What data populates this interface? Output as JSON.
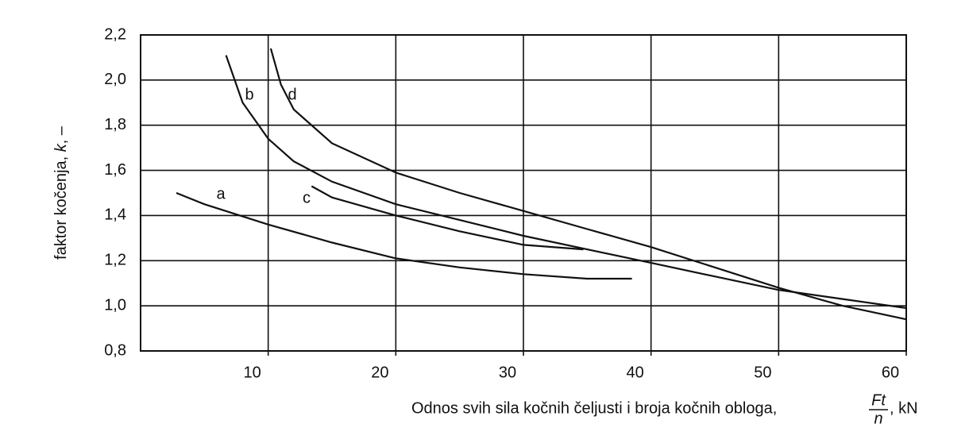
{
  "chart_data": {
    "type": "line",
    "y_label": "faktor kočenja,",
    "y_label_symbol": "k",
    "y_label_unit": ", –",
    "x_label": "Odnos svih sila kočnih čeljusti i broja kočnih obloga,",
    "x_label_numerator": "Ft",
    "x_label_denominator": "n",
    "x_label_unit": ", kN",
    "xlim": [
      0,
      60
    ],
    "xticks": [
      10,
      20,
      30,
      40,
      50,
      60
    ],
    "ylim": [
      0.8,
      2.2
    ],
    "yticks": [
      {
        "value": 0.8,
        "label": "0,8"
      },
      {
        "value": 1.0,
        "label": "1,0"
      },
      {
        "value": 1.2,
        "label": "1,2"
      },
      {
        "value": 1.4,
        "label": "1,4"
      },
      {
        "value": 1.6,
        "label": "1,6"
      },
      {
        "value": 1.8,
        "label": "1,8"
      },
      {
        "value": 2.0,
        "label": "2,0"
      },
      {
        "value": 2.2,
        "label": "2,2"
      }
    ],
    "grid": true,
    "series": [
      {
        "name": "a",
        "color": "#111111",
        "x": [
          2.8,
          5,
          10,
          15,
          20,
          25,
          30,
          35,
          38.5
        ],
        "values": [
          1.5,
          1.45,
          1.36,
          1.28,
          1.21,
          1.17,
          1.14,
          1.12,
          1.12
        ]
      },
      {
        "name": "b",
        "color": "#111111",
        "x": [
          6.7,
          8,
          10,
          12,
          15,
          20,
          25,
          30,
          35,
          40,
          45,
          50,
          55,
          60
        ],
        "values": [
          2.11,
          1.9,
          1.74,
          1.64,
          1.55,
          1.45,
          1.38,
          1.31,
          1.25,
          1.19,
          1.13,
          1.07,
          1.03,
          0.99
        ]
      },
      {
        "name": "c",
        "color": "#111111",
        "x": [
          13.4,
          15,
          20,
          25,
          30,
          34.7
        ],
        "values": [
          1.53,
          1.48,
          1.4,
          1.33,
          1.27,
          1.25
        ]
      },
      {
        "name": "d",
        "color": "#111111",
        "x": [
          10.2,
          11,
          12,
          15,
          20,
          25,
          30,
          35,
          40,
          45,
          50,
          55,
          60
        ],
        "values": [
          2.14,
          1.98,
          1.87,
          1.72,
          1.59,
          1.5,
          1.42,
          1.34,
          1.26,
          1.17,
          1.08,
          1.0,
          0.94
        ]
      }
    ]
  }
}
